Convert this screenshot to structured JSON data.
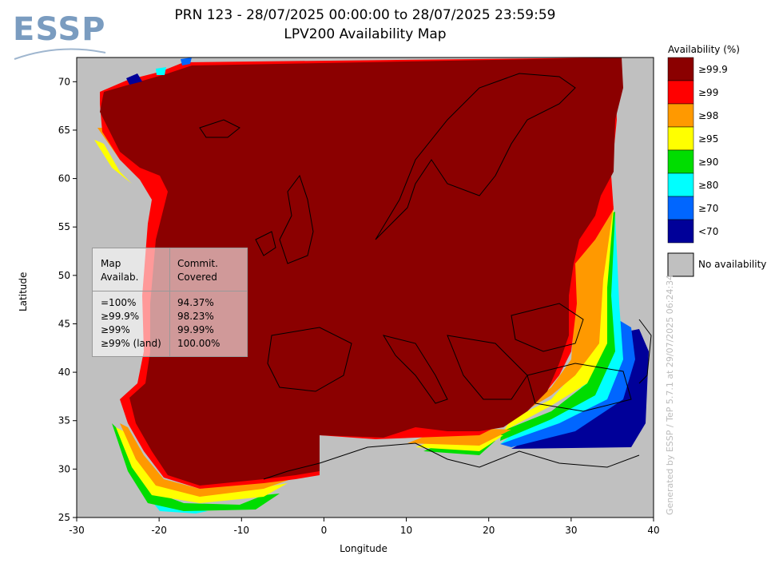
{
  "logo": {
    "text": "ESSP"
  },
  "title": {
    "line1": "PRN 123 - 28/07/2025 00:00:00 to 28/07/2025 23:59:59",
    "line2": "LPV200 Availability Map"
  },
  "axes": {
    "xlabel": "Longitude",
    "ylabel": "Latitude",
    "x_ticks": [
      "-30",
      "-20",
      "-10",
      "0",
      "10",
      "20",
      "30",
      "40"
    ],
    "y_ticks": [
      "70",
      "65",
      "60",
      "55",
      "50",
      "45",
      "40",
      "35",
      "30",
      "25"
    ],
    "xlim": [
      -30,
      40
    ],
    "ylim": [
      25,
      72.5
    ]
  },
  "legend": {
    "title": "Availability (%)",
    "items": [
      {
        "label": "≥99.9",
        "color": "#8b0000"
      },
      {
        "label": "≥99",
        "color": "#ff0000"
      },
      {
        "label": "≥98",
        "color": "#ff9900"
      },
      {
        "label": "≥95",
        "color": "#ffff00"
      },
      {
        "label": "≥90",
        "color": "#00dd00"
      },
      {
        "label": "≥80",
        "color": "#00ffff"
      },
      {
        "label": "≥70",
        "color": "#0066ff"
      },
      {
        "label": "<70",
        "color": "#000099"
      }
    ],
    "no_availability": {
      "label": "No availability",
      "color": "#c0c0c0"
    }
  },
  "info_box": {
    "header_col1": [
      "Map",
      "Availab."
    ],
    "header_col2": [
      "Commit.",
      "Covered"
    ],
    "rows": [
      {
        "map": "=100%",
        "covered": "94.37%"
      },
      {
        "map": "≥99.9%",
        "covered": "98.23%"
      },
      {
        "map": "≥99%",
        "covered": "99.99%"
      },
      {
        "map": "≥99% (land)",
        "covered": "100.00%"
      }
    ]
  },
  "watermark": "Generated by ESSP / TeP 5.7.1 at 29/07/2025 06:24:34"
}
